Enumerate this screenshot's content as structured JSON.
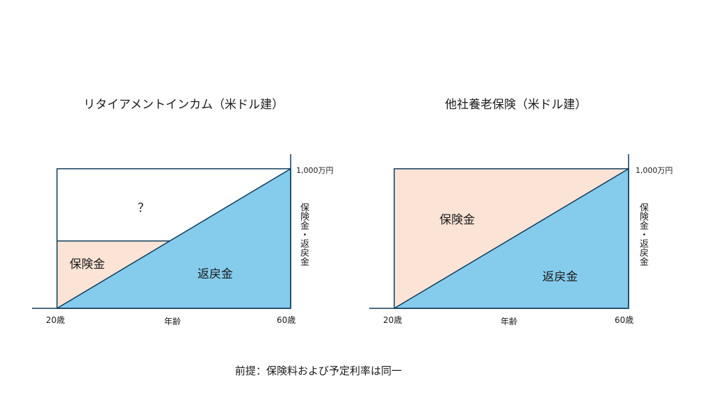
{
  "left": {
    "title": "リタイアメントインカム（米ドル建）",
    "max_label": "1,000万円",
    "y_axis_label": "保険金・返戻金",
    "x_start": "20歳",
    "x_mid": "年齢",
    "x_end": "60歳",
    "unknown_label": "？",
    "insurance_label": "保険金",
    "refund_label": "返戻金"
  },
  "right": {
    "title": "他社養老保険（米ドル建）",
    "max_label": "1,000万円",
    "y_axis_label": "保険金・返戻金",
    "x_start": "20歳",
    "x_mid": "年齢",
    "x_end": "60歳",
    "insurance_label": "保険金",
    "refund_label": "返戻金"
  },
  "footer": "前提：保険料および予定利率は同一",
  "colors": {
    "insurance": "#FBE3D6",
    "refund": "#85CCEC",
    "line": "#0D3B5C"
  }
}
